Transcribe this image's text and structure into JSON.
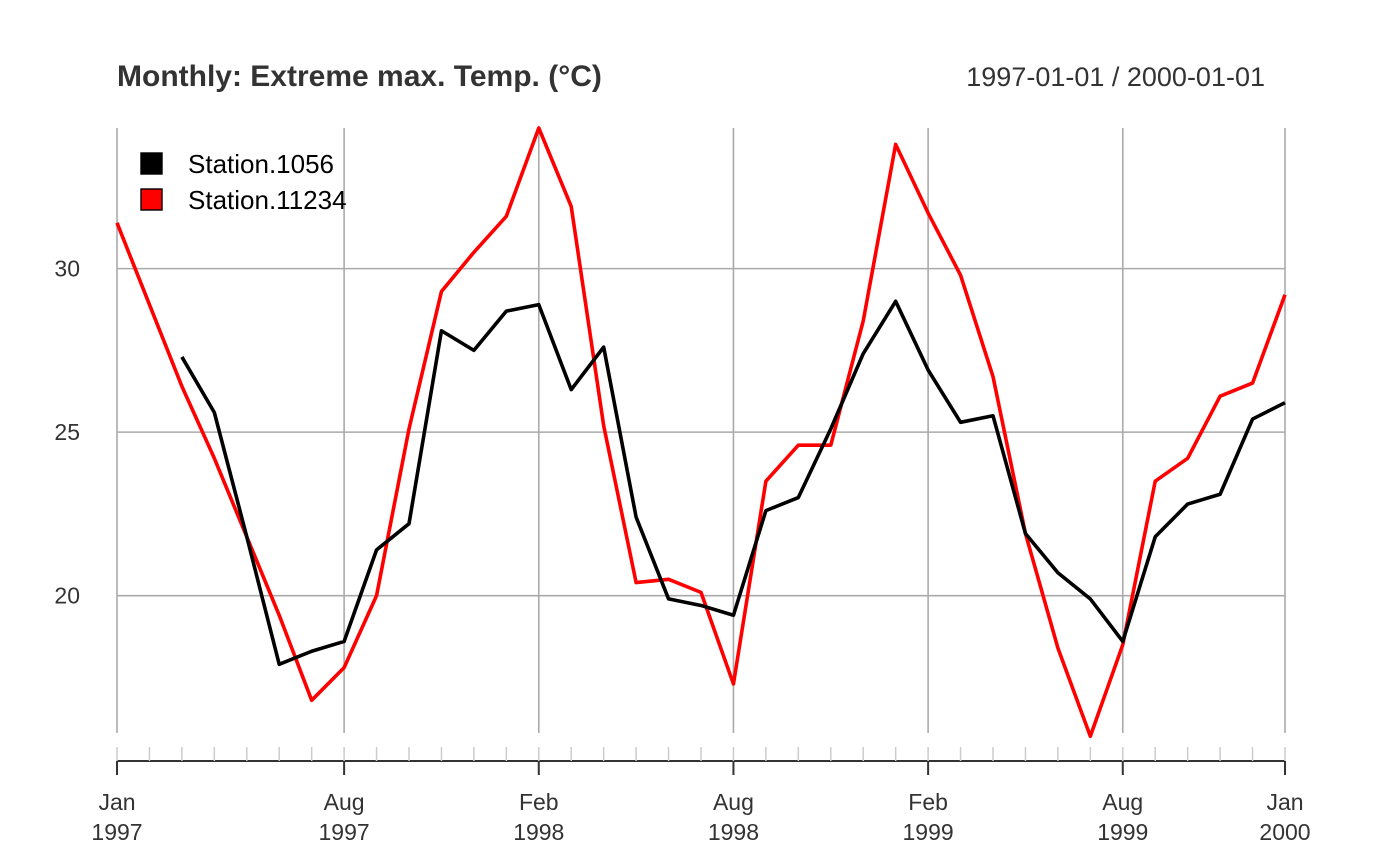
{
  "chart_data": {
    "type": "line",
    "title": "Monthly: Extreme max. Temp. (°C)",
    "date_range": "1997-01-01 / 2000-01-01",
    "xlabel": "",
    "ylabel": "",
    "x_dates": [
      "1997-01",
      "1997-02",
      "1997-03",
      "1997-04",
      "1997-05",
      "1997-06",
      "1997-07",
      "1997-08",
      "1997-09",
      "1997-10",
      "1997-11",
      "1997-12",
      "1998-01",
      "1998-02",
      "1998-03",
      "1998-04",
      "1998-05",
      "1998-06",
      "1998-07",
      "1998-08",
      "1998-09",
      "1998-10",
      "1998-11",
      "1998-12",
      "1999-01",
      "1999-02",
      "1999-03",
      "1999-04",
      "1999-05",
      "1999-06",
      "1999-07",
      "1999-08",
      "1999-09",
      "1999-10",
      "1999-11",
      "1999-12",
      "2000-01"
    ],
    "ylim": [
      15.8,
      34.3
    ],
    "yticks": [
      20,
      25,
      30
    ],
    "grid": true,
    "legend_position": "top-left",
    "x_tick_labels": [
      {
        "date": "1997-01",
        "month": "Jan",
        "year": "1997"
      },
      {
        "date": "1997-08",
        "month": "Aug",
        "year": "1997"
      },
      {
        "date": "1998-02",
        "month": "Feb",
        "year": "1998"
      },
      {
        "date": "1998-08",
        "month": "Aug",
        "year": "1998"
      },
      {
        "date": "1999-02",
        "month": "Feb",
        "year": "1999"
      },
      {
        "date": "1999-08",
        "month": "Aug",
        "year": "1999"
      },
      {
        "date": "2000-01",
        "month": "Jan",
        "year": "2000"
      }
    ],
    "series": [
      {
        "name": "Station.1056",
        "color": "#000000",
        "values": [
          null,
          null,
          27.3,
          25.6,
          21.8,
          17.9,
          18.3,
          18.6,
          21.4,
          22.2,
          28.1,
          27.5,
          28.7,
          28.9,
          26.3,
          27.6,
          22.4,
          19.9,
          19.7,
          19.4,
          22.6,
          23.0,
          25.1,
          27.4,
          29.0,
          26.9,
          25.3,
          25.5,
          21.9,
          20.7,
          19.9,
          18.6,
          21.8,
          22.8,
          23.1,
          25.4,
          25.9
        ]
      },
      {
        "name": "Station.11234",
        "color": "#ff0000",
        "values": [
          31.4,
          28.9,
          26.4,
          24.2,
          21.8,
          19.4,
          16.8,
          17.8,
          20.0,
          25.1,
          29.3,
          30.5,
          31.6,
          34.3,
          31.9,
          25.2,
          20.4,
          20.5,
          20.1,
          17.3,
          23.5,
          24.6,
          24.6,
          28.4,
          33.8,
          31.7,
          29.8,
          26.7,
          21.9,
          18.4,
          15.7,
          18.5,
          23.5,
          24.2,
          26.1,
          26.5,
          29.2
        ]
      }
    ]
  }
}
